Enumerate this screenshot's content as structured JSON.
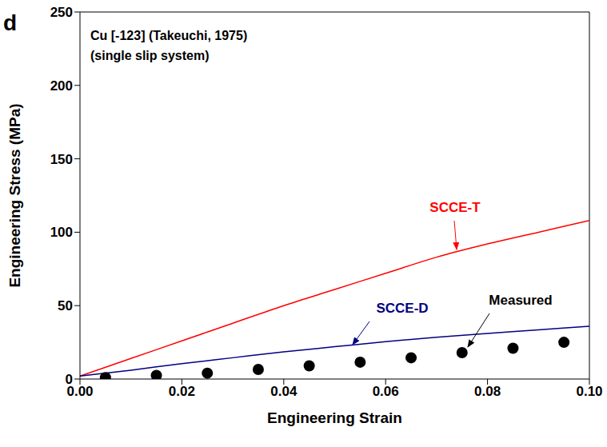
{
  "chart_data": {
    "type": "line",
    "panel_label": "d",
    "title": "Cu [-123] (Takeuchi, 1975)",
    "subtitle": "(single slip system)",
    "x_label": "Engineering Strain",
    "y_label": "Engineering Stress (MPa)",
    "xlim": [
      0,
      0.1
    ],
    "ylim": [
      0,
      250
    ],
    "xticks": [
      {
        "value": 0,
        "label": "0.00"
      },
      {
        "value": 0.02,
        "label": "0.02"
      },
      {
        "value": 0.04,
        "label": "0.04"
      },
      {
        "value": 0.06,
        "label": "0.06"
      },
      {
        "value": 0.08,
        "label": "0.08"
      },
      {
        "value": 0.1,
        "label": "0.10"
      }
    ],
    "yticks": [
      0,
      50,
      100,
      150,
      200,
      250
    ],
    "grid": false,
    "series": [
      {
        "name": "SCCE-T",
        "type": "line",
        "color": "#ff0000",
        "line_style": "solid",
        "x": [
          0,
          0.01,
          0.02,
          0.03,
          0.04,
          0.05,
          0.06,
          0.07,
          0.08,
          0.09,
          0.1
        ],
        "values": [
          2,
          14,
          26,
          38,
          50,
          61,
          72,
          83,
          92,
          100,
          108
        ]
      },
      {
        "name": "SCCE-D",
        "type": "line",
        "color": "#000080",
        "line_style": "solid",
        "x": [
          0,
          0.01,
          0.02,
          0.03,
          0.04,
          0.05,
          0.06,
          0.07,
          0.08,
          0.09,
          0.1
        ],
        "values": [
          2,
          6,
          10.5,
          14.5,
          18.5,
          22,
          25.5,
          28.5,
          31,
          33.5,
          36
        ]
      },
      {
        "name": "Measured",
        "type": "scatter",
        "color": "#000000",
        "marker": "circle",
        "x": [
          0.005,
          0.015,
          0.025,
          0.035,
          0.045,
          0.055,
          0.065,
          0.075,
          0.085,
          0.095
        ],
        "values": [
          1,
          2.5,
          4,
          6.5,
          9,
          11.5,
          14.5,
          18,
          21,
          25
        ]
      }
    ]
  }
}
